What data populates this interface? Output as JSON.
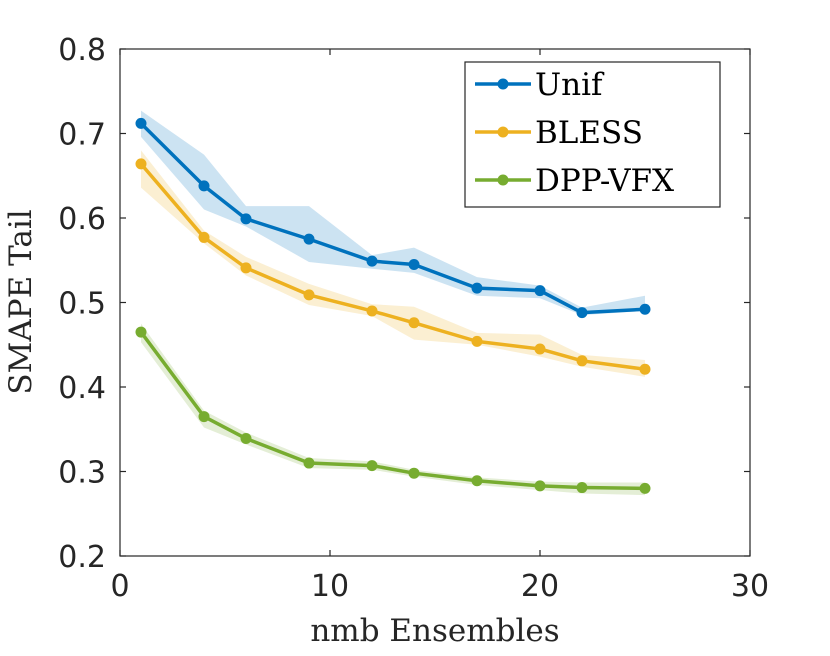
{
  "chart_data": {
    "type": "line",
    "xlabel": "nmb Ensembles",
    "ylabel": "SMAPE Tail",
    "xlim": [
      0,
      30
    ],
    "ylim": [
      0.2,
      0.8
    ],
    "xticks": [
      0,
      10,
      20,
      30
    ],
    "xtick_labels": [
      "0",
      "10",
      "20",
      "30"
    ],
    "yticks": [
      0.2,
      0.3,
      0.4,
      0.5,
      0.6,
      0.7,
      0.8
    ],
    "ytick_labels": [
      "0.2",
      "0.3",
      "0.4",
      "0.5",
      "0.6",
      "0.7",
      "0.8"
    ],
    "grid": false,
    "legend_position": "top-right",
    "x": [
      1,
      4,
      6,
      9,
      12,
      14,
      17,
      20,
      22,
      25
    ],
    "series": [
      {
        "name": "Unif",
        "color": "#0072BD",
        "values": [
          0.712,
          0.638,
          0.599,
          0.575,
          0.549,
          0.545,
          0.517,
          0.514,
          0.488,
          0.492
        ],
        "upper": [
          0.727,
          0.675,
          0.614,
          0.614,
          0.556,
          0.565,
          0.53,
          0.52,
          0.494,
          0.508
        ],
        "lower": [
          0.696,
          0.61,
          0.59,
          0.548,
          0.54,
          0.535,
          0.508,
          0.505,
          0.485,
          0.49
        ]
      },
      {
        "name": "BLESS",
        "color": "#EDB120",
        "values": [
          0.664,
          0.577,
          0.541,
          0.509,
          0.49,
          0.476,
          0.454,
          0.445,
          0.431,
          0.421
        ],
        "upper": [
          0.68,
          0.585,
          0.554,
          0.522,
          0.498,
          0.495,
          0.464,
          0.462,
          0.438,
          0.432
        ],
        "lower": [
          0.636,
          0.57,
          0.532,
          0.497,
          0.484,
          0.456,
          0.45,
          0.436,
          0.424,
          0.412
        ]
      },
      {
        "name": "DPP-VFX",
        "color": "#77AC30",
        "values": [
          0.465,
          0.365,
          0.339,
          0.31,
          0.307,
          0.298,
          0.289,
          0.283,
          0.281,
          0.28
        ],
        "upper": [
          0.475,
          0.372,
          0.346,
          0.316,
          0.312,
          0.302,
          0.293,
          0.288,
          0.287,
          0.287
        ],
        "lower": [
          0.453,
          0.352,
          0.332,
          0.304,
          0.302,
          0.294,
          0.284,
          0.278,
          0.274,
          0.272
        ]
      }
    ]
  }
}
